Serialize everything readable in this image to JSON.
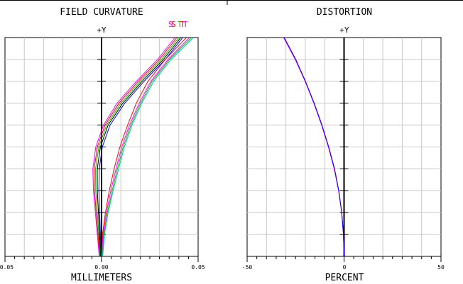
{
  "chart_data": [
    {
      "type": "line",
      "title": "FIELD CURVATURE",
      "xlabel": "MILLIMETERS",
      "ylabel": "+Y",
      "xlim": [
        -0.05,
        0.05
      ],
      "ylim": [
        0,
        1
      ],
      "x_tick_labels": [
        "-0.05",
        "0.00",
        "0.05"
      ],
      "grid": true,
      "legend_labels": [
        "S",
        "S",
        "T",
        "T",
        "T"
      ],
      "legend_colors": [
        "#ff00ff",
        "#ff0000",
        "#00c000",
        "#ff0000",
        "#ff00ff"
      ],
      "series": [
        {
          "color": "#ff00ff",
          "x": [
            -0.0012,
            -0.0022,
            -0.0032,
            -0.0042,
            -0.0045,
            -0.003,
            0.001,
            0.008,
            0.018,
            0.029,
            0.038
          ],
          "y": [
            0,
            0.1,
            0.2,
            0.3,
            0.4,
            0.5,
            0.6,
            0.7,
            0.8,
            0.9,
            1.0
          ]
        },
        {
          "color": "#ff0000",
          "x": [
            -0.001,
            -0.0018,
            -0.0028,
            -0.0036,
            -0.0038,
            -0.0022,
            0.0018,
            0.009,
            0.019,
            0.03,
            0.039
          ],
          "y": [
            0,
            0.1,
            0.2,
            0.3,
            0.4,
            0.5,
            0.6,
            0.7,
            0.8,
            0.9,
            1.0
          ]
        },
        {
          "color": "#00c000",
          "x": [
            -0.0008,
            -0.0014,
            -0.0022,
            -0.003,
            -0.0031,
            -0.0014,
            0.0026,
            0.01,
            0.02,
            0.031,
            0.04
          ],
          "y": [
            0,
            0.1,
            0.2,
            0.3,
            0.4,
            0.5,
            0.6,
            0.7,
            0.8,
            0.9,
            1.0
          ]
        },
        {
          "color": "#000000",
          "x": [
            -0.0005,
            -0.001,
            -0.0016,
            -0.0022,
            -0.0022,
            -0.0006,
            0.0034,
            0.011,
            0.021,
            0.032,
            0.041
          ],
          "y": [
            0,
            0.1,
            0.2,
            0.3,
            0.4,
            0.5,
            0.6,
            0.7,
            0.8,
            0.9,
            1.0
          ]
        },
        {
          "color": "#0000ff",
          "x": [
            -0.0003,
            -0.0006,
            -0.001,
            -0.0014,
            -0.0012,
            0.0004,
            0.0044,
            0.012,
            0.022,
            0.033,
            0.042
          ],
          "y": [
            0,
            0.1,
            0.2,
            0.3,
            0.4,
            0.5,
            0.6,
            0.7,
            0.8,
            0.9,
            1.0
          ]
        },
        {
          "color": "#ff0000",
          "x": [
            0.0,
            0.0005,
            0.002,
            0.004,
            0.0065,
            0.0095,
            0.0135,
            0.018,
            0.024,
            0.033,
            0.044
          ],
          "y": [
            0,
            0.1,
            0.2,
            0.3,
            0.4,
            0.5,
            0.6,
            0.7,
            0.8,
            0.9,
            1.0
          ]
        },
        {
          "color": "#ff00ff",
          "x": [
            0.0002,
            0.0008,
            0.0025,
            0.0048,
            0.0075,
            0.0105,
            0.0145,
            0.0195,
            0.0255,
            0.0345,
            0.0455
          ],
          "y": [
            0,
            0.1,
            0.2,
            0.3,
            0.4,
            0.5,
            0.6,
            0.7,
            0.8,
            0.9,
            1.0
          ]
        },
        {
          "color": "#00c000",
          "x": [
            0.0004,
            0.0012,
            0.003,
            0.0055,
            0.0082,
            0.0112,
            0.0152,
            0.0202,
            0.0262,
            0.0352,
            0.0465
          ],
          "y": [
            0,
            0.1,
            0.2,
            0.3,
            0.4,
            0.5,
            0.6,
            0.7,
            0.8,
            0.9,
            1.0
          ]
        },
        {
          "color": "#00bcbc",
          "x": [
            0.0006,
            0.0015,
            0.0034,
            0.006,
            0.0088,
            0.0118,
            0.0158,
            0.0208,
            0.027,
            0.036,
            0.0475
          ],
          "y": [
            0,
            0.1,
            0.2,
            0.3,
            0.4,
            0.5,
            0.6,
            0.7,
            0.8,
            0.9,
            1.0
          ]
        }
      ]
    },
    {
      "type": "line",
      "title": "DISTORTION",
      "xlabel": "PERCENT",
      "ylabel": "+Y",
      "xlim": [
        -50,
        50
      ],
      "ylim": [
        0,
        1
      ],
      "x_tick_labels": [
        "-50",
        "0",
        "50"
      ],
      "grid": true,
      "series": [
        {
          "color": "#ff0000",
          "x": [
            0,
            -0.3,
            -1.2,
            -2.8,
            -5.0,
            -8.0,
            -11.5,
            -15.5,
            -20.0,
            -25.0,
            -31.0
          ],
          "y": [
            0,
            0.1,
            0.2,
            0.3,
            0.4,
            0.5,
            0.6,
            0.7,
            0.8,
            0.9,
            1.0
          ]
        },
        {
          "color": "#ff00ff",
          "x": [
            0,
            -0.3,
            -1.2,
            -2.8,
            -5.1,
            -8.1,
            -11.6,
            -15.6,
            -20.1,
            -25.2,
            -31.2
          ],
          "y": [
            0,
            0.1,
            0.2,
            0.3,
            0.4,
            0.5,
            0.6,
            0.7,
            0.8,
            0.9,
            1.0
          ]
        },
        {
          "color": "#0000ff",
          "x": [
            0,
            -0.3,
            -1.2,
            -2.7,
            -4.9,
            -7.9,
            -11.4,
            -15.4,
            -19.9,
            -24.9,
            -30.9
          ],
          "y": [
            0,
            0.1,
            0.2,
            0.3,
            0.4,
            0.5,
            0.6,
            0.7,
            0.8,
            0.9,
            1.0
          ]
        }
      ]
    }
  ]
}
